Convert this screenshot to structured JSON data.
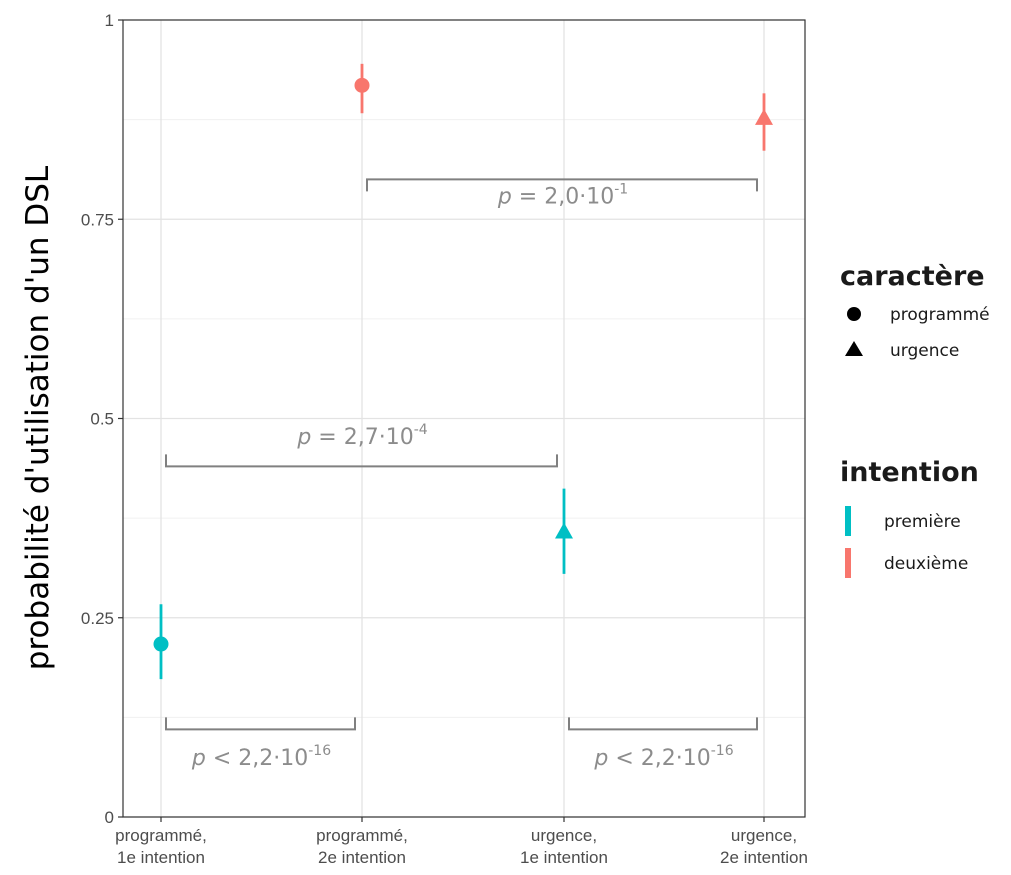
{
  "chart_data": {
    "type": "scatter",
    "ylabel": "probabilité d'utilisation d'un DSL",
    "xlabel": "",
    "ylim": [
      0,
      1
    ],
    "y_ticks": [
      {
        "value": 0,
        "label": "0"
      },
      {
        "value": 0.25,
        "label": "0.25"
      },
      {
        "value": 0.5,
        "label": "0.5"
      },
      {
        "value": 0.75,
        "label": "0.75"
      },
      {
        "value": 1,
        "label": "1"
      }
    ],
    "grid": true,
    "categories": [
      {
        "line1": "programmé,",
        "line2": "1e intention"
      },
      {
        "line1": "programmé,",
        "line2": "2e intention"
      },
      {
        "line1": "urgence,",
        "line2": "1e intention"
      },
      {
        "line1": "urgence,",
        "line2": "2e intention"
      }
    ],
    "points": [
      {
        "category": 0,
        "y": 0.217,
        "ymin": 0.173,
        "ymax": 0.267,
        "caractere": "programmé",
        "intention": "première"
      },
      {
        "category": 1,
        "y": 0.918,
        "ymin": 0.883,
        "ymax": 0.945,
        "caractere": "programmé",
        "intention": "deuxième"
      },
      {
        "category": 2,
        "y": 0.357,
        "ymin": 0.305,
        "ymax": 0.412,
        "caractere": "urgence",
        "intention": "première"
      },
      {
        "category": 3,
        "y": 0.876,
        "ymin": 0.836,
        "ymax": 0.908,
        "caractere": "urgence",
        "intention": "deuxième"
      }
    ],
    "comparisons": [
      {
        "from": 1,
        "to": 3,
        "bracket_y": 0.8,
        "direction": "down",
        "label_y": 0.77,
        "p_base": "2,0·10",
        "p_exp": "-1",
        "op": "="
      },
      {
        "from": 0,
        "to": 2,
        "bracket_y": 0.44,
        "direction": "up",
        "label_y": 0.468,
        "p_base": "2,7·10",
        "p_exp": "-4",
        "op": "="
      },
      {
        "from": 0,
        "to": 1,
        "bracket_y": 0.11,
        "direction": "up",
        "label_y": 0.065,
        "p_base": "2,2·10",
        "p_exp": "-16",
        "op": "<"
      },
      {
        "from": 2,
        "to": 3,
        "bracket_y": 0.11,
        "direction": "up",
        "label_y": 0.065,
        "p_base": "2,2·10",
        "p_exp": "-16",
        "op": "<"
      }
    ],
    "legends": [
      {
        "title": "caractère",
        "type": "shape",
        "items": [
          {
            "label": "programmé",
            "shape": "circle"
          },
          {
            "label": "urgence",
            "shape": "triangle"
          }
        ]
      },
      {
        "title": "intention",
        "type": "color",
        "items": [
          {
            "label": "première",
            "color": "#00BFC4"
          },
          {
            "label": "deuxième",
            "color": "#F8766D"
          }
        ]
      }
    ],
    "colors": {
      "première": "#00BFC4",
      "deuxième": "#F8766D",
      "bracket": "#808080"
    }
  }
}
